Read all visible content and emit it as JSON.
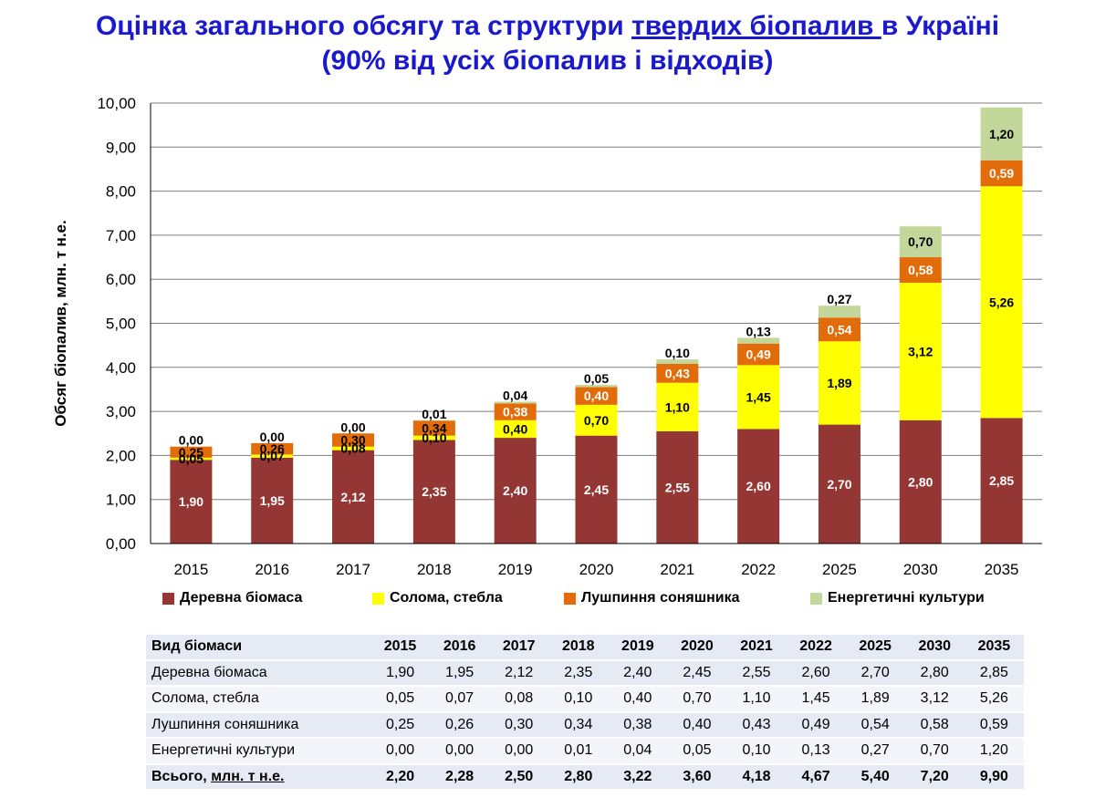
{
  "title": {
    "line1_a": "Оцінка загального обсягу та структури ",
    "line1_u": "твердих біопалив ",
    "line1_b": "в Україні",
    "line2": "(90% від усіх біопалив і відходів)"
  },
  "chart_data": {
    "type": "bar",
    "stacked": true,
    "ylabel": "Обсяг біопалив, млн. т н.е.",
    "ylim": [
      0,
      10
    ],
    "ytick_step": 1,
    "grid": true,
    "legend_position": "bottom",
    "categories": [
      "2015",
      "2016",
      "2017",
      "2018",
      "2019",
      "2020",
      "2021",
      "2022",
      "2025",
      "2030",
      "2035"
    ],
    "series": [
      {
        "name": "Деревна біомаса",
        "color": "#943634",
        "label_color": "#ffffff",
        "values": [
          1.9,
          1.95,
          2.12,
          2.35,
          2.4,
          2.45,
          2.55,
          2.6,
          2.7,
          2.8,
          2.85
        ]
      },
      {
        "name": "Солома, стебла",
        "color": "#ffff00",
        "label_color": "#000000",
        "values": [
          0.05,
          0.07,
          0.08,
          0.1,
          0.4,
          0.7,
          1.1,
          1.45,
          1.89,
          3.12,
          5.26
        ]
      },
      {
        "name": "Лушпиння соняшника",
        "color": "#e36c0a",
        "label_color": "#ffffff",
        "values": [
          0.25,
          0.26,
          0.3,
          0.34,
          0.38,
          0.4,
          0.43,
          0.49,
          0.54,
          0.58,
          0.59
        ]
      },
      {
        "name": "Енергетичні культури",
        "color": "#c4d79b",
        "label_color": "#000000",
        "values": [
          0.0,
          0.0,
          0.0,
          0.01,
          0.04,
          0.05,
          0.1,
          0.13,
          0.27,
          0.7,
          1.2
        ]
      }
    ],
    "value_labels": [
      [
        "1,90",
        "1,95",
        "2,12",
        "2,35",
        "2,40",
        "2,45",
        "2,55",
        "2,60",
        "2,70",
        "2,80",
        "2,85"
      ],
      [
        "0,05",
        "0,07",
        "0,08",
        "0,10",
        "0,40",
        "0,70",
        "1,10",
        "1,45",
        "1,89",
        "3,12",
        "5,26"
      ],
      [
        "0,25",
        "0,26",
        "0,30",
        "0,34",
        "0,38",
        "0,40",
        "0,43",
        "0,49",
        "0,54",
        "0,58",
        "0,59"
      ],
      [
        "0,00",
        "0,00",
        "0,00",
        "0,01",
        "0,04",
        "0,05",
        "0,10",
        "0,13",
        "0,27",
        "0,70",
        "1,20"
      ]
    ],
    "ytick_labels": [
      "0,00",
      "1,00",
      "2,00",
      "3,00",
      "4,00",
      "5,00",
      "6,00",
      "7,00",
      "8,00",
      "9,00",
      "10,00"
    ]
  },
  "table": {
    "header": [
      "Вид біомаси",
      "2015",
      "2016",
      "2017",
      "2018",
      "2019",
      "2020",
      "2021",
      "2022",
      "2025",
      "2030",
      "2035"
    ],
    "rows": [
      [
        "Деревна біомаса",
        "1,90",
        "1,95",
        "2,12",
        "2,35",
        "2,40",
        "2,45",
        "2,55",
        "2,60",
        "2,70",
        "2,80",
        "2,85"
      ],
      [
        "Солома, стебла",
        "0,05",
        "0,07",
        "0,08",
        "0,10",
        "0,40",
        "0,70",
        "1,10",
        "1,45",
        "1,89",
        "3,12",
        "5,26"
      ],
      [
        "Лушпиння соняшника",
        "0,25",
        "0,26",
        "0,30",
        "0,34",
        "0,38",
        "0,40",
        "0,43",
        "0,49",
        "0,54",
        "0,58",
        "0,59"
      ],
      [
        "Енергетичні культури",
        "0,00",
        "0,00",
        "0,00",
        "0,01",
        "0,04",
        "0,05",
        "0,10",
        "0,13",
        "0,27",
        "0,70",
        "1,20"
      ]
    ],
    "total_prefix": "Всього, ",
    "total_unit": "млн. т н.е.",
    "total": [
      "2,20",
      "2,28",
      "2,50",
      "2,80",
      "3,22",
      "3,60",
      "4,18",
      "4,67",
      "5,40",
      "7,20",
      "9,90"
    ]
  }
}
